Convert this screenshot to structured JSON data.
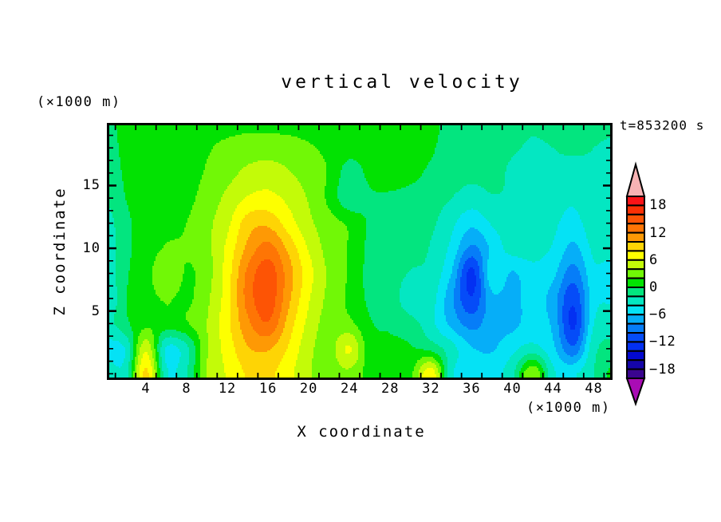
{
  "title": "vertical velocity",
  "timestamp": "t=853200 s",
  "axes": {
    "x": {
      "label": "X coordinate",
      "unit": "(×1000 m)",
      "range": [
        0.4,
        49.6
      ],
      "major_ticks": [
        4,
        8,
        12,
        16,
        20,
        24,
        28,
        32,
        36,
        40,
        44,
        48
      ],
      "minor_tick_step": 2,
      "major_tick_step": 4
    },
    "z": {
      "label": "Z coordinate",
      "unit": "(×1000 m)",
      "range": [
        -0.3,
        19.8
      ],
      "major_ticks": [
        5,
        10,
        15
      ],
      "minor_tick_step": 1,
      "major_tick_step": 5
    }
  },
  "colorbar": {
    "min": -20,
    "max": 20,
    "step": 2,
    "tick_labels": [
      "18",
      "12",
      "6",
      "0",
      "−6",
      "−12",
      "−18"
    ],
    "colors_low_to_high": [
      "#3a058f",
      "#1505a8",
      "#0309d0",
      "#0330f2",
      "#054cf8",
      "#067df8",
      "#06aef8",
      "#05e2f5",
      "#04e7c2",
      "#03e57f",
      "#02e202",
      "#71f806",
      "#c3fb08",
      "#fdff00",
      "#fed405",
      "#fe9905",
      "#fe7505",
      "#fd5405",
      "#fb3005",
      "#fb1317"
    ],
    "arrow_top_color": "#f7b3b4",
    "arrow_bottom_color": "#a90cb4",
    "frame_color": "#000000"
  },
  "chart_data": {
    "type": "heatmap",
    "style": "filled-contour",
    "title": "vertical velocity",
    "xlabel": "X coordinate (×1000 m)",
    "ylabel": "Z coordinate (×1000 m)",
    "contour_interval": 2,
    "value_range": [
      -20,
      20
    ],
    "x": [
      0,
      2,
      4,
      6,
      8,
      10,
      12,
      14,
      16,
      18,
      20,
      22,
      24,
      26,
      28,
      30,
      32,
      34,
      36,
      38,
      40,
      42,
      44,
      46,
      48,
      50
    ],
    "z": [
      0,
      2,
      4,
      6,
      8,
      10,
      12,
      14,
      16,
      18,
      20
    ],
    "values": [
      [
        -2.5,
        -3,
        8.5,
        -3.5,
        -2,
        4.2,
        6.2,
        8.2,
        8.4,
        6.6,
        4.2,
        3,
        3.5,
        1.2,
        1,
        1.5,
        7.5,
        -3.5,
        -4.2,
        -4.6,
        -2.5,
        4,
        -3.5,
        -4.2,
        -2,
        0.8
      ],
      [
        -4.5,
        -3.8,
        5.5,
        -4.2,
        -2.5,
        3.8,
        6.8,
        9.8,
        10.2,
        7.8,
        4.6,
        3.2,
        6.2,
        0.8,
        0.5,
        0.2,
        -0.6,
        -3.2,
        -5.8,
        -6.2,
        -4.5,
        -3.2,
        -5.5,
        -9.5,
        -2.6,
        -1.6
      ],
      [
        -3,
        -0.5,
        1.5,
        1.2,
        1.8,
        4,
        7.5,
        11.5,
        13.8,
        9.2,
        5.4,
        3,
        2.5,
        0.2,
        -0.3,
        -1.2,
        -3.4,
        -6.5,
        -8.8,
        -6.8,
        -6.6,
        -5,
        -6.5,
        -12.4,
        -4,
        -2.4
      ],
      [
        -4.5,
        -0.2,
        1.2,
        2.2,
        1.6,
        3.6,
        7.2,
        12.8,
        15.3,
        10.5,
        6.2,
        3.4,
        1.6,
        -0.4,
        -0.8,
        -3.4,
        -3.2,
        -7.5,
        -11.8,
        -6.5,
        -6.8,
        -5,
        -7,
        -11.5,
        -4.8,
        -4.5
      ],
      [
        -3.5,
        -0.3,
        1,
        4,
        1.8,
        3.2,
        7,
        12.5,
        15.2,
        11,
        6.8,
        3.6,
        1.8,
        -0.6,
        -0.8,
        -2.2,
        -2.6,
        -6,
        -12.6,
        -4.5,
        -6.2,
        -4.5,
        -5.5,
        -9,
        -4.5,
        -5.5
      ],
      [
        -3.5,
        -0.5,
        0.8,
        2.2,
        2.2,
        3.4,
        6.5,
        10.5,
        12.8,
        9.5,
        5.8,
        3.2,
        1.8,
        -0.5,
        -0.7,
        -1,
        -2.2,
        -4.5,
        -8.5,
        -5.5,
        -3.2,
        -3.4,
        -4.2,
        -6.5,
        -3.5,
        -2.8
      ],
      [
        -3,
        -0.5,
        0.8,
        1.5,
        2,
        3.5,
        5.5,
        9,
        9.5,
        7,
        4.5,
        2.8,
        1.6,
        -0.2,
        -0.5,
        -0.8,
        -1.6,
        -3.5,
        -5.5,
        -3.8,
        -2.6,
        -3,
        -3.6,
        -4.8,
        -2.6,
        -2.2
      ],
      [
        -2,
        0,
        1,
        1,
        1.5,
        2.8,
        4.5,
        6.2,
        6.6,
        5.5,
        3.8,
        1.5,
        -1.5,
        -0.3,
        -0.2,
        -0.5,
        -1,
        -2,
        -3,
        -2.2,
        -2.2,
        -2.6,
        -3,
        -3.6,
        -2.2,
        -2.5
      ],
      [
        -1.5,
        0.3,
        1,
        1,
        1.3,
        2.2,
        3.3,
        4.5,
        5,
        4.2,
        3,
        1.8,
        -1,
        0.5,
        0.6,
        0.4,
        -0.3,
        -1,
        -1.5,
        -1.4,
        -2.3,
        -2.6,
        -2.2,
        -2.6,
        -2.1,
        -2.5
      ],
      [
        -1,
        0.5,
        1,
        1,
        1.2,
        1.8,
        2.5,
        3,
        3,
        2.8,
        2.2,
        1.6,
        0.8,
        1,
        0.8,
        0.6,
        0.2,
        -0.8,
        -1.2,
        -1.4,
        -1.8,
        -2.2,
        -2,
        -1.8,
        -2,
        -2.2
      ],
      [
        -0.5,
        0.5,
        1,
        1,
        1,
        1.2,
        1.3,
        1.5,
        1.5,
        1.4,
        1.3,
        1.2,
        1,
        1,
        0.8,
        0.6,
        0.4,
        -0.5,
        -1,
        -1.2,
        -1.5,
        -1.8,
        -1.5,
        -1.4,
        -1.6,
        -1.8
      ]
    ]
  }
}
